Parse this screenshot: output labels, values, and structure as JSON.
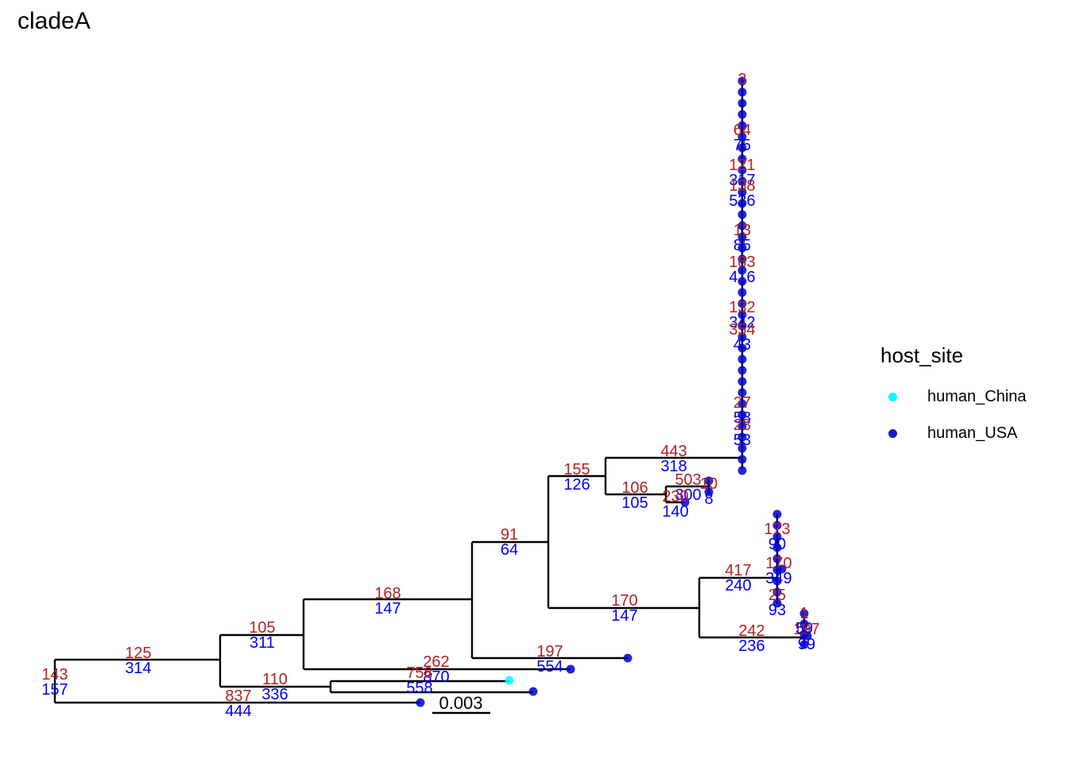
{
  "title": "cladeA",
  "legend": {
    "title": "host_site",
    "items": [
      {
        "label": "human_China",
        "color": "#00FFFF"
      },
      {
        "label": "human_USA",
        "color": "#0000CD"
      }
    ]
  },
  "scale_bar": {
    "label": "0.003"
  },
  "colors": {
    "red_label": "#B22222",
    "blue_label": "#0000EE",
    "branch": "#000000"
  },
  "branch_labels": [
    {
      "id": "n1",
      "red": "143",
      "blue": "157"
    },
    {
      "id": "n2",
      "red": "125",
      "blue": "314"
    },
    {
      "id": "n3",
      "red": "837",
      "blue": "444"
    },
    {
      "id": "n4",
      "red": "105",
      "blue": "311"
    },
    {
      "id": "n5",
      "red": "110",
      "blue": "336"
    },
    {
      "id": "n6",
      "red": "168",
      "blue": "147"
    },
    {
      "id": "n7",
      "red": "262",
      "blue": "870"
    },
    {
      "id": "n8",
      "red": "758",
      "blue": "558"
    },
    {
      "id": "n9",
      "red": "91",
      "blue": "64"
    },
    {
      "id": "n10",
      "red": "197",
      "blue": "554"
    },
    {
      "id": "n11",
      "red": "155",
      "blue": "126"
    },
    {
      "id": "n12",
      "red": "170",
      "blue": "147"
    },
    {
      "id": "n13",
      "red": "443",
      "blue": "318"
    },
    {
      "id": "n14",
      "red": "106",
      "blue": "105"
    },
    {
      "id": "n15",
      "red": "503",
      "blue": "300"
    },
    {
      "id": "n16",
      "red": "230",
      "blue": "140"
    },
    {
      "id": "n17",
      "red": "10",
      "blue": "8"
    },
    {
      "id": "n18",
      "red": "417",
      "blue": "240"
    },
    {
      "id": "n19",
      "red": "242",
      "blue": "236"
    },
    {
      "id": "n20",
      "red": "173",
      "blue": "90"
    },
    {
      "id": "n21",
      "red": "170",
      "blue": "349"
    },
    {
      "id": "n22",
      "red": "25",
      "blue": "93"
    },
    {
      "id": "n23",
      "red": "197",
      "blue": "99"
    },
    {
      "id": "n24",
      "red": "1",
      "blue": "59"
    },
    {
      "id": "n25",
      "red": "3",
      "blue": ""
    },
    {
      "id": "n26",
      "red": "64",
      "blue": "75"
    },
    {
      "id": "n27",
      "red": "121",
      "blue": "317"
    },
    {
      "id": "n28",
      "red": "138",
      "blue": "536"
    },
    {
      "id": "n29",
      "red": "13",
      "blue": "85"
    },
    {
      "id": "n30",
      "red": "183",
      "blue": "416"
    },
    {
      "id": "n31",
      "red": "132",
      "blue": "342"
    },
    {
      "id": "n32",
      "red": "354",
      "blue": "43"
    },
    {
      "id": "n33",
      "red": "27",
      "blue": "58"
    },
    {
      "id": "n34",
      "red": "23",
      "blue": "53"
    }
  ],
  "tips": [
    {
      "id": "t1",
      "host": "human_USA"
    },
    {
      "id": "t2",
      "host": "human_China"
    },
    {
      "id": "t3",
      "host": "human_USA"
    },
    {
      "id": "t4",
      "host": "human_USA"
    },
    {
      "id": "t5",
      "host": "human_USA"
    },
    {
      "id": "t6",
      "host": "human_USA"
    },
    {
      "id": "t7",
      "host": "human_USA"
    },
    {
      "id": "t8",
      "host": "human_USA"
    }
  ]
}
